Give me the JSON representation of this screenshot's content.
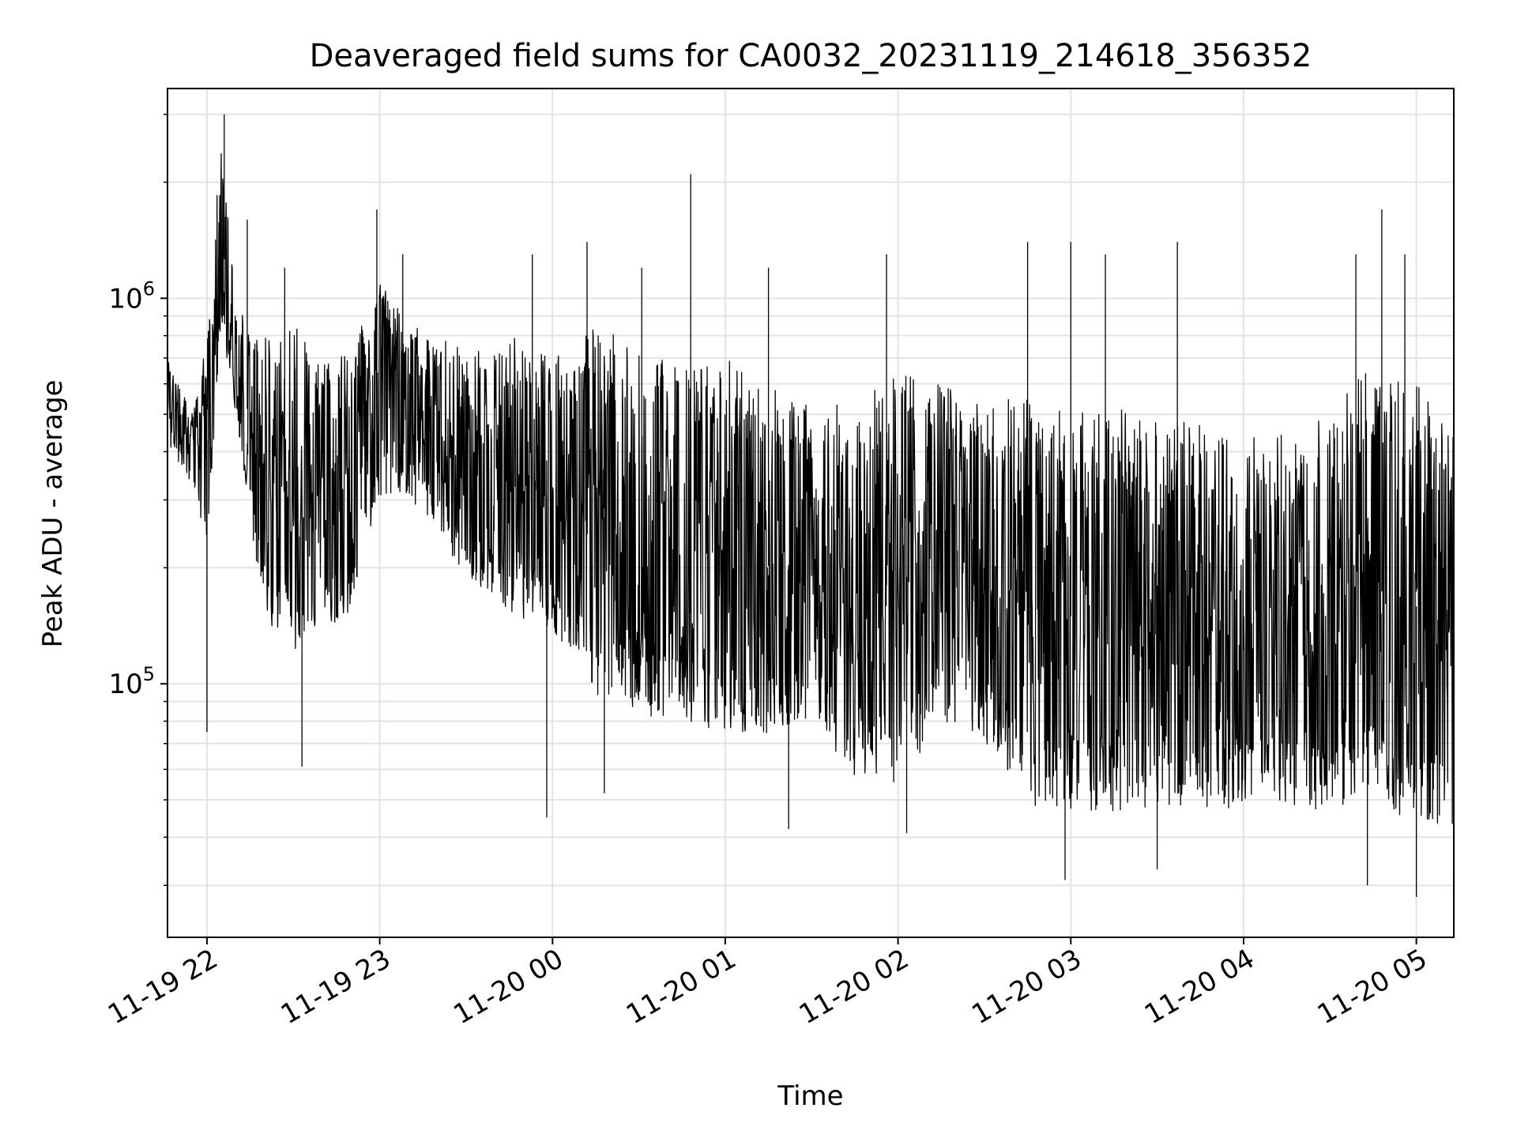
{
  "chart_data": {
    "type": "line",
    "title": "Deaveraged field sums for CA0032_20231119_214618_356352",
    "xlabel": "Time",
    "ylabel": "Peak ADU - average",
    "y_scale": "log",
    "ylim": [
      22000,
      3500000
    ],
    "xlim": [
      "2023-11-19 21:46:18",
      "2023-11-20 05:13:00"
    ],
    "grid": true,
    "legend": "none",
    "line_color": "#000000",
    "x_ticks": [
      {
        "time": "2023-11-19 22:00",
        "label": "11-19 22"
      },
      {
        "time": "2023-11-19 23:00",
        "label": "11-19 23"
      },
      {
        "time": "2023-11-20 00:00",
        "label": "11-20 00"
      },
      {
        "time": "2023-11-20 01:00",
        "label": "11-20 01"
      },
      {
        "time": "2023-11-20 02:00",
        "label": "11-20 02"
      },
      {
        "time": "2023-11-20 03:00",
        "label": "11-20 03"
      },
      {
        "time": "2023-11-20 04:00",
        "label": "11-20 04"
      },
      {
        "time": "2023-11-20 05:00",
        "label": "11-20 05"
      }
    ],
    "y_ticks": [
      {
        "value": 100000,
        "base": "10",
        "exp": "5"
      },
      {
        "value": 1000000,
        "base": "10",
        "exp": "6"
      }
    ],
    "series": [
      {
        "x": [
          "2023-11-19 21:46",
          "2023-11-19 21:55",
          "2023-11-19 22:00",
          "2023-11-19 22:05",
          "2023-11-19 22:10",
          "2023-11-19 22:20",
          "2023-11-19 22:30",
          "2023-11-19 22:40",
          "2023-11-19 22:50",
          "2023-11-19 23:00",
          "2023-11-19 23:15",
          "2023-11-19 23:30",
          "2023-11-19 23:45",
          "2023-11-20 00:00",
          "2023-11-20 00:15",
          "2023-11-20 00:30",
          "2023-11-20 00:45",
          "2023-11-20 01:00",
          "2023-11-20 01:15",
          "2023-11-20 01:30",
          "2023-11-20 01:45",
          "2023-11-20 02:00",
          "2023-11-20 02:15",
          "2023-11-20 02:30",
          "2023-11-20 02:45",
          "2023-11-20 03:00",
          "2023-11-20 03:15",
          "2023-11-20 03:30",
          "2023-11-20 03:45",
          "2023-11-20 04:00",
          "2023-11-20 04:15",
          "2023-11-20 04:30",
          "2023-11-20 04:45",
          "2023-11-20 05:00",
          "2023-11-20 05:13"
        ],
        "low": [
          420000,
          320000,
          230000,
          800000,
          500000,
          140000,
          110000,
          130000,
          150000,
          300000,
          280000,
          180000,
          150000,
          130000,
          90000,
          80000,
          75000,
          70000,
          68000,
          75000,
          55000,
          52000,
          75000,
          70000,
          46000,
          45000,
          44000,
          46000,
          45000,
          45000,
          46000,
          44000,
          45000,
          42000,
          40000
        ],
        "high": [
          700000,
          500000,
          800000,
          2700000,
          950000,
          800000,
          850000,
          750000,
          700000,
          1200000,
          800000,
          750000,
          800000,
          700000,
          850000,
          750000,
          650000,
          700000,
          600000,
          560000,
          520000,
          650000,
          600000,
          550000,
          550000,
          500000,
          520000,
          500000,
          480000,
          450000,
          460000,
          500000,
          700000,
          600000,
          450000
        ],
        "spikes": [
          {
            "x": "2023-11-19 22:06",
            "y": 3000000
          },
          {
            "x": "2023-11-19 22:14",
            "y": 1600000
          },
          {
            "x": "2023-11-19 22:27",
            "y": 1200000
          },
          {
            "x": "2023-11-19 22:59",
            "y": 1700000
          },
          {
            "x": "2023-11-19 23:08",
            "y": 1300000
          },
          {
            "x": "2023-11-19 23:53",
            "y": 1300000
          },
          {
            "x": "2023-11-20 00:12",
            "y": 1400000
          },
          {
            "x": "2023-11-20 00:31",
            "y": 1200000
          },
          {
            "x": "2023-11-20 00:48",
            "y": 2100000
          },
          {
            "x": "2023-11-20 01:15",
            "y": 1200000
          },
          {
            "x": "2023-11-20 01:56",
            "y": 1300000
          },
          {
            "x": "2023-11-20 02:45",
            "y": 1400000
          },
          {
            "x": "2023-11-20 03:00",
            "y": 1400000
          },
          {
            "x": "2023-11-20 03:12",
            "y": 1300000
          },
          {
            "x": "2023-11-20 03:37",
            "y": 1400000
          },
          {
            "x": "2023-11-20 04:39",
            "y": 1300000
          },
          {
            "x": "2023-11-20 04:48",
            "y": 1700000
          },
          {
            "x": "2023-11-20 04:56",
            "y": 1300000
          }
        ],
        "dips": [
          {
            "x": "2023-11-19 22:00",
            "y": 75000
          },
          {
            "x": "2023-11-19 22:33",
            "y": 61000
          },
          {
            "x": "2023-11-19 23:58",
            "y": 45000
          },
          {
            "x": "2023-11-20 00:18",
            "y": 52000
          },
          {
            "x": "2023-11-20 01:22",
            "y": 42000
          },
          {
            "x": "2023-11-20 02:03",
            "y": 41000
          },
          {
            "x": "2023-11-20 02:58",
            "y": 31000
          },
          {
            "x": "2023-11-20 03:30",
            "y": 33000
          },
          {
            "x": "2023-11-20 04:43",
            "y": 30000
          },
          {
            "x": "2023-11-20 05:00",
            "y": 28000
          }
        ]
      }
    ]
  }
}
